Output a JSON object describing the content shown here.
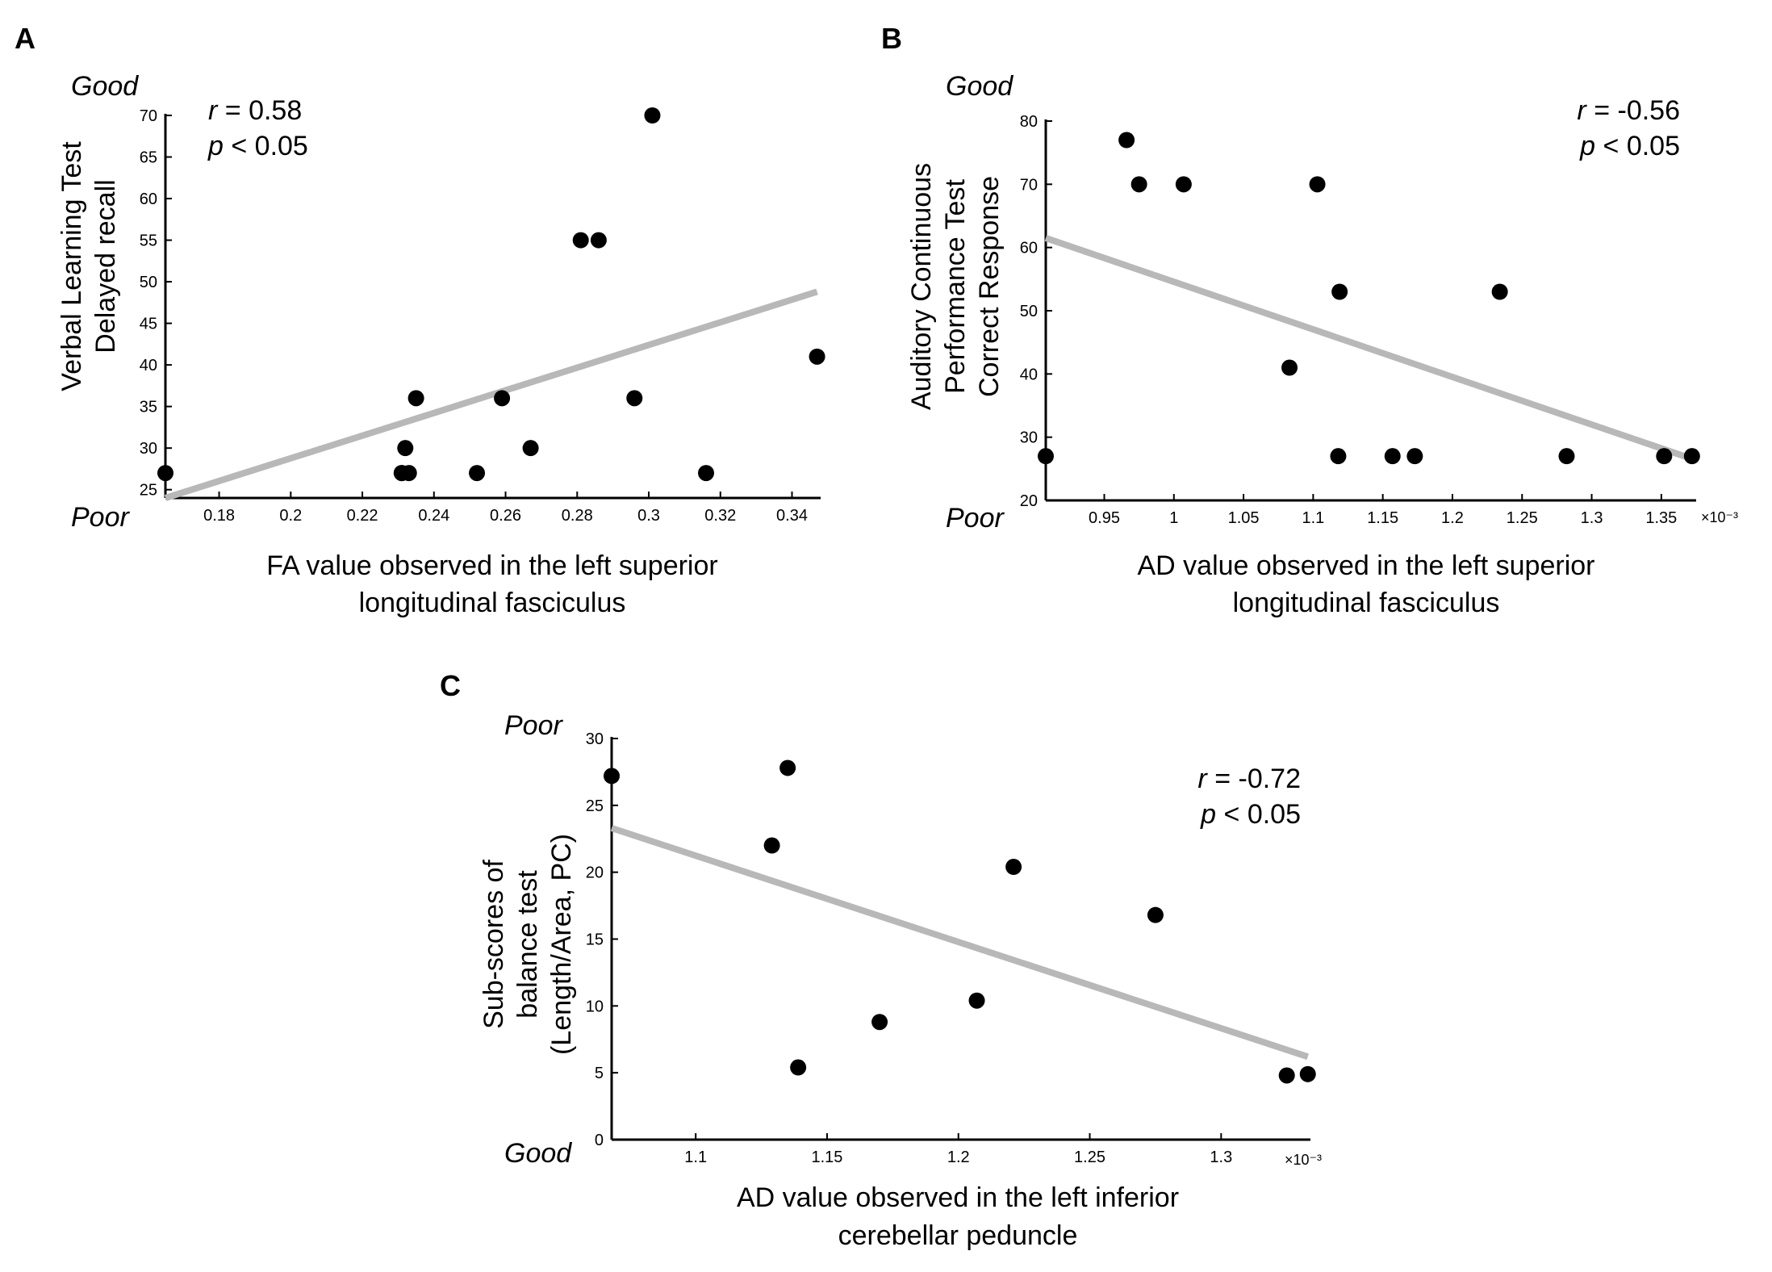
{
  "figure": {
    "colors": {
      "point": "#000000",
      "fit_line": "#b8b8b8",
      "axis": "#000000"
    }
  },
  "chart_data": [
    {
      "id": "A",
      "panel_label": "A",
      "type": "scatter",
      "xlabel": [
        "FA value observed in the left superior",
        "longitudinal fasciculus"
      ],
      "ylabel": [
        "Verbal Learning Test",
        "Delayed recall"
      ],
      "xlim": [
        0.165,
        0.348
      ],
      "ylim": [
        24,
        70
      ],
      "xticks": [
        0.18,
        0.2,
        0.22,
        0.24,
        0.26,
        0.28,
        0.3,
        0.32,
        0.34
      ],
      "xtick_labels": [
        "0.18",
        "0.2",
        "0.22",
        "0.24",
        "0.26",
        "0.28",
        "0.3",
        "0.32",
        "0.34"
      ],
      "yticks": [
        25,
        30,
        35,
        40,
        45,
        50,
        55,
        60,
        65,
        70
      ],
      "ytick_labels": [
        "25",
        "30",
        "35",
        "40",
        "45",
        "50",
        "55",
        "60",
        "65",
        "70"
      ],
      "x_exponent": "",
      "top_anchor": "Good",
      "bottom_anchor": "Poor",
      "stats": {
        "r": "= 0.58",
        "p": "< 0.05",
        "r_symbol": "r",
        "p_symbol": "p",
        "position": "top-left"
      },
      "points": {
        "x": [
          0.165,
          0.231,
          0.232,
          0.233,
          0.231,
          0.235,
          0.252,
          0.259,
          0.267,
          0.281,
          0.286,
          0.296,
          0.301,
          0.316,
          0.347
        ],
        "y": [
          27,
          27,
          30,
          27,
          27,
          36,
          27,
          36,
          30,
          55,
          55,
          36,
          70,
          27,
          41
        ]
      },
      "fit_line": {
        "x": [
          0.165,
          0.347
        ],
        "y": [
          24,
          48.8
        ]
      }
    },
    {
      "id": "B",
      "panel_label": "B",
      "type": "scatter",
      "xlabel": [
        "AD value observed in the left superior",
        "longitudinal fasciculus"
      ],
      "ylabel": [
        "Auditory Continuous",
        "Performance Test",
        "Correct Response"
      ],
      "xlim": [
        0.908,
        1.375
      ],
      "ylim": [
        20,
        80
      ],
      "xticks": [
        0.95,
        1.0,
        1.05,
        1.1,
        1.15,
        1.2,
        1.25,
        1.3,
        1.35
      ],
      "xtick_labels": [
        "0.95",
        "1",
        "1.05",
        "1.1",
        "1.15",
        "1.2",
        "1.25",
        "1.3",
        "1.35"
      ],
      "yticks": [
        20,
        30,
        40,
        50,
        60,
        70,
        80
      ],
      "ytick_labels": [
        "20",
        "30",
        "40",
        "50",
        "60",
        "70",
        "80"
      ],
      "x_exponent": "×10⁻³",
      "top_anchor": "Good",
      "bottom_anchor": "Poor",
      "stats": {
        "r": "= -0.56",
        "p": "< 0.05",
        "r_symbol": "r",
        "p_symbol": "p",
        "position": "top-right"
      },
      "points": {
        "x": [
          0.908,
          0.966,
          0.975,
          1.007,
          1.083,
          1.103,
          1.118,
          1.119,
          1.157,
          1.173,
          1.234,
          1.282,
          1.352,
          1.372
        ],
        "y": [
          27,
          77,
          70,
          70,
          41,
          70,
          27,
          53,
          27,
          27,
          53,
          27,
          27,
          27
        ]
      },
      "fit_line": {
        "x": [
          0.908,
          1.373
        ],
        "y": [
          61.5,
          26.5
        ]
      }
    },
    {
      "id": "C",
      "panel_label": "C",
      "type": "scatter",
      "xlabel": [
        "AD value observed in the left inferior",
        "cerebellar peduncle"
      ],
      "ylabel": [
        "Sub-scores of",
        "balance test",
        "(Length/Area, PC)"
      ],
      "xlim": [
        1.068,
        1.334
      ],
      "ylim": [
        0,
        30
      ],
      "xticks": [
        1.1,
        1.15,
        1.2,
        1.25,
        1.3
      ],
      "xtick_labels": [
        "1.1",
        "1.15",
        "1.2",
        "1.25",
        "1.3"
      ],
      "yticks": [
        0,
        5,
        10,
        15,
        20,
        25,
        30
      ],
      "ytick_labels": [
        "0",
        "5",
        "10",
        "15",
        "20",
        "25",
        "30"
      ],
      "x_exponent": "×10⁻³",
      "top_anchor": "Poor",
      "bottom_anchor": "Good",
      "stats": {
        "r": "= -0.72",
        "p": "< 0.05",
        "r_symbol": "r",
        "p_symbol": "p",
        "position": "top-right"
      },
      "points": {
        "x": [
          1.068,
          1.129,
          1.135,
          1.139,
          1.17,
          1.207,
          1.221,
          1.275,
          1.325,
          1.333
        ],
        "y": [
          27.2,
          22.0,
          27.8,
          5.4,
          8.8,
          10.4,
          20.4,
          16.8,
          4.8,
          4.9
        ]
      },
      "fit_line": {
        "x": [
          1.068,
          1.333
        ],
        "y": [
          23.3,
          6.2
        ]
      }
    }
  ]
}
